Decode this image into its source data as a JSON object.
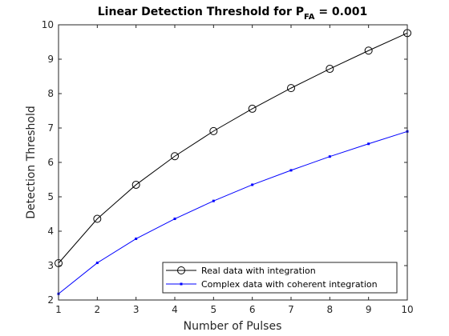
{
  "chart_data": {
    "type": "line",
    "title": {
      "prefix": "Linear Detection Threshold for P",
      "subscript": "FA",
      "suffix": " = 0.001"
    },
    "xlabel": "Number of Pulses",
    "ylabel": "Detection Threshold",
    "xlim": [
      1,
      10
    ],
    "ylim": [
      2,
      10
    ],
    "x": [
      1,
      2,
      3,
      4,
      5,
      6,
      7,
      8,
      9,
      10
    ],
    "x_ticks": [
      "1",
      "2",
      "3",
      "4",
      "5",
      "6",
      "7",
      "8",
      "9",
      "10"
    ],
    "y_ticks": [
      "2",
      "3",
      "4",
      "5",
      "6",
      "7",
      "8",
      "9",
      "10"
    ],
    "grid": false,
    "legend_position": "bottom-right",
    "series": [
      {
        "name": "Real data with integration",
        "color": "#000000",
        "marker": "circle",
        "values": [
          3.07,
          4.36,
          5.35,
          6.18,
          6.91,
          7.56,
          8.16,
          8.72,
          9.25,
          9.76
        ]
      },
      {
        "name": "Complex data with coherent integration",
        "color": "#0000ff",
        "marker": "point",
        "values": [
          2.18,
          3.08,
          3.78,
          4.36,
          4.88,
          5.35,
          5.77,
          6.17,
          6.54,
          6.9
        ]
      }
    ]
  }
}
